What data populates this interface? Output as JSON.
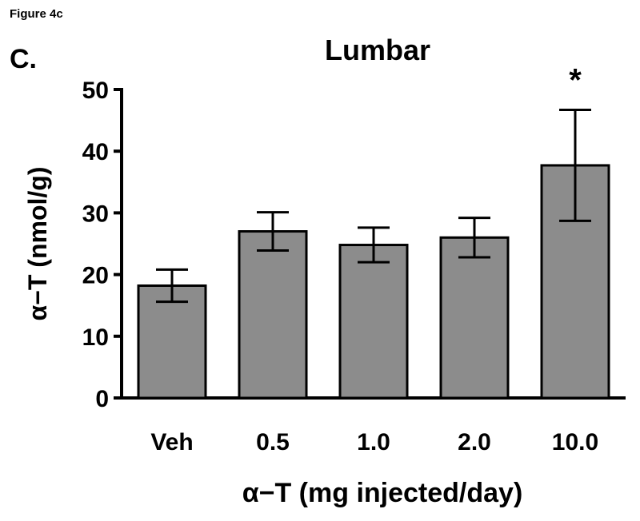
{
  "figure_label": "Figure 4c",
  "panel_label": "C.",
  "chart_data": {
    "type": "bar",
    "title": "Lumbar",
    "xlabel": "α−T (mg injected/day)",
    "ylabel": "α−T (nmol/g)",
    "categories": [
      "Veh",
      "0.5",
      "1.0",
      "2.0",
      "10.0"
    ],
    "values": [
      18.2,
      27.0,
      24.8,
      26.0,
      37.7
    ],
    "errors": [
      2.6,
      3.1,
      2.8,
      3.2,
      9.0
    ],
    "significance": [
      "",
      "",
      "",
      "",
      "*"
    ],
    "ylim": [
      0,
      50
    ],
    "yticks": [
      0,
      10,
      20,
      30,
      40,
      50
    ],
    "bar_color": "#8c8c8c",
    "grid": false,
    "legend": "none"
  }
}
